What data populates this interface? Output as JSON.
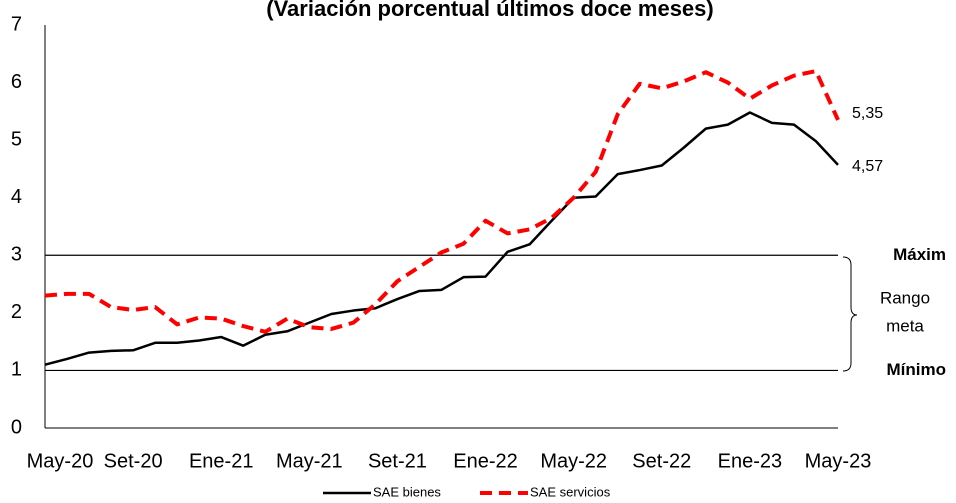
{
  "chart_data": {
    "type": "line",
    "title": "(Variación porcentual últimos doce meses)",
    "categories": [
      "May-20",
      null,
      null,
      null,
      "Set-20",
      null,
      null,
      null,
      "Ene-21",
      null,
      null,
      null,
      "May-21",
      null,
      null,
      null,
      "Set-21",
      null,
      null,
      null,
      "Ene-22",
      null,
      null,
      null,
      "May-22",
      null,
      null,
      null,
      "Set-22",
      null,
      null,
      null,
      "Ene-23",
      null,
      null,
      null,
      "May-23"
    ],
    "series": [
      {
        "name": "SAE bienes",
        "color": "#000000",
        "dash": "solid",
        "values": [
          1.1,
          1.2,
          1.31,
          1.34,
          1.35,
          1.48,
          1.48,
          1.52,
          1.58,
          1.43,
          1.62,
          1.68,
          1.83,
          1.98,
          2.04,
          2.08,
          2.24,
          2.38,
          2.4,
          2.62,
          2.63,
          3.06,
          3.19,
          3.6,
          4.0,
          4.02,
          4.41,
          4.48,
          4.56,
          4.87,
          5.2,
          5.27,
          5.48,
          5.3,
          5.27,
          4.98,
          4.57
        ],
        "value_labels": [
          null,
          null,
          null,
          null,
          null,
          null,
          null,
          null,
          null,
          null,
          null,
          null,
          null,
          null,
          null,
          null,
          null,
          null,
          null,
          null,
          null,
          null,
          null,
          null,
          null,
          null,
          null,
          null,
          null,
          null,
          null,
          null,
          null,
          null,
          null,
          null,
          "4,57"
        ]
      },
      {
        "name": "SAE servicios",
        "color": "#ff0000",
        "dash": "dashed",
        "values": [
          2.3,
          2.33,
          2.33,
          2.1,
          2.05,
          2.1,
          1.8,
          1.92,
          1.9,
          1.77,
          1.67,
          1.9,
          1.75,
          1.72,
          1.83,
          2.15,
          2.55,
          2.8,
          3.05,
          3.2,
          3.6,
          3.38,
          3.45,
          3.65,
          4.0,
          4.45,
          5.45,
          5.98,
          5.9,
          6.02,
          6.18,
          6.0,
          5.72,
          5.95,
          6.12,
          6.2,
          5.35
        ],
        "value_labels": [
          null,
          null,
          null,
          null,
          null,
          null,
          null,
          null,
          null,
          null,
          null,
          null,
          null,
          null,
          null,
          null,
          null,
          null,
          null,
          null,
          null,
          null,
          null,
          null,
          null,
          null,
          null,
          null,
          null,
          null,
          null,
          null,
          null,
          null,
          null,
          null,
          "5,35"
        ]
      }
    ],
    "ylim": [
      0,
      7
    ],
    "yticks": [
      0,
      1,
      2,
      3,
      4,
      5,
      6,
      7
    ],
    "reference_lines": [
      {
        "value": 3,
        "label": "Máxim"
      },
      {
        "value": 1,
        "label": "Mínimo"
      }
    ],
    "range_label": [
      "Rango",
      "meta"
    ],
    "legend": "bottom"
  }
}
